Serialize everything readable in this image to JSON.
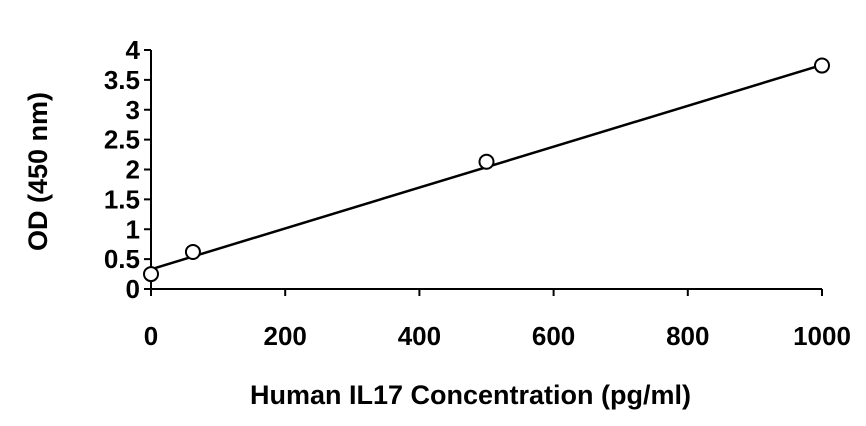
{
  "chart_data": {
    "type": "scatter",
    "title": "",
    "xlabel": "Human IL17 Concentration (pg/ml)",
    "ylabel": "OD (450 nm)",
    "xlim": [
      0,
      1000
    ],
    "ylim": [
      0,
      4
    ],
    "x_ticks": [
      0,
      200,
      400,
      600,
      800,
      1000
    ],
    "x_tick_labels": [
      "0",
      "200",
      "400",
      "600",
      "800",
      "1000"
    ],
    "y_ticks": [
      0,
      0.5,
      1,
      1.5,
      2,
      2.5,
      3,
      3.5,
      4
    ],
    "y_tick_labels": [
      "0",
      "0.5",
      "1",
      "1.5",
      "2",
      "2.5",
      "3",
      "3.5",
      "4"
    ],
    "grid": false,
    "legend": "none",
    "series": [
      {
        "marker": "open-circle",
        "points": [
          {
            "x": 0,
            "y": 0.25
          },
          {
            "x": 62.5,
            "y": 0.62
          },
          {
            "x": 500,
            "y": 2.13
          },
          {
            "x": 1000,
            "y": 3.74
          }
        ]
      }
    ],
    "trendline": {
      "type": "linear",
      "from": {
        "x": 0,
        "y": 0.33
      },
      "to": {
        "x": 1000,
        "y": 3.75
      }
    },
    "colors": {
      "axis": "#000000",
      "marker_fill": "#ffffff",
      "marker_stroke": "#000000",
      "line": "#000000"
    }
  }
}
